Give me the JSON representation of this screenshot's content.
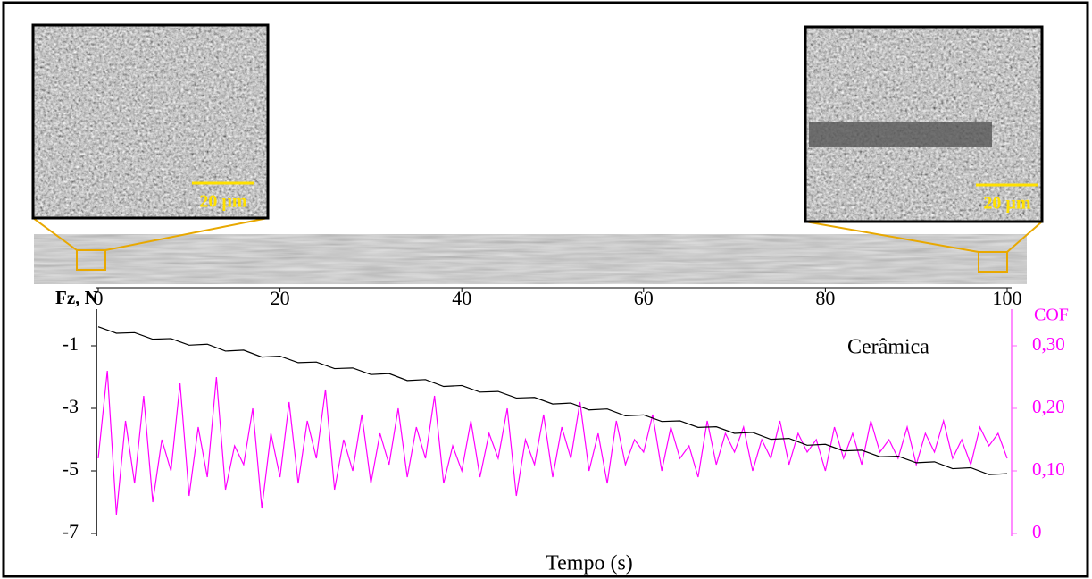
{
  "chart_data": {
    "type": "line",
    "annotation": "Cerâmica",
    "scale_bar_labels": [
      "20 µm",
      "20 µm"
    ],
    "xlabel": "Tempo (s)",
    "ylabel": "Fz, N",
    "y2label": "COF",
    "xlim": [
      0,
      100
    ],
    "xticks": [
      0,
      20,
      40,
      60,
      80,
      100
    ],
    "ylim": [
      -7,
      0
    ],
    "yticks": [
      -1,
      -3,
      -5,
      -7
    ],
    "y2lim": [
      0,
      0.35
    ],
    "y2ticks": [
      0,
      {
        "value": 0.1,
        "label": "0,10"
      },
      {
        "value": 0.2,
        "label": "0,20"
      },
      {
        "value": 0.3,
        "label": "0,30"
      }
    ],
    "series": [
      {
        "name": "Fz, N",
        "color": "#000000",
        "x": [
          0,
          2,
          4,
          6,
          8,
          10,
          12,
          14,
          16,
          18,
          20,
          22,
          24,
          26,
          28,
          30,
          32,
          34,
          36,
          38,
          40,
          42,
          44,
          46,
          48,
          50,
          52,
          54,
          56,
          58,
          60,
          62,
          64,
          66,
          68,
          70,
          72,
          74,
          76,
          78,
          80,
          82,
          84,
          86,
          88,
          90,
          92,
          94,
          96,
          98,
          100
        ],
        "values": [
          -0.39,
          -0.6,
          -0.58,
          -0.79,
          -0.77,
          -0.98,
          -0.95,
          -1.17,
          -1.14,
          -1.36,
          -1.33,
          -1.54,
          -1.52,
          -1.73,
          -1.71,
          -1.92,
          -1.89,
          -2.11,
          -2.08,
          -2.3,
          -2.27,
          -2.48,
          -2.46,
          -2.67,
          -2.65,
          -2.86,
          -2.83,
          -3.05,
          -3.02,
          -3.24,
          -3.21,
          -3.42,
          -3.4,
          -3.61,
          -3.59,
          -3.8,
          -3.77,
          -3.99,
          -3.96,
          -4.18,
          -4.15,
          -4.36,
          -4.34,
          -4.55,
          -4.53,
          -4.74,
          -4.71,
          -4.93,
          -4.9,
          -5.12,
          -5.09
        ]
      },
      {
        "name": "COF",
        "color": "#ff00ff",
        "axis": "y2",
        "x": [
          0,
          1,
          2,
          3,
          4,
          5,
          6,
          7,
          8,
          9,
          10,
          11,
          12,
          13,
          14,
          15,
          16,
          17,
          18,
          19,
          20,
          21,
          22,
          23,
          24,
          25,
          26,
          27,
          28,
          29,
          30,
          31,
          32,
          33,
          34,
          35,
          36,
          37,
          38,
          39,
          40,
          41,
          42,
          43,
          44,
          45,
          46,
          47,
          48,
          49,
          50,
          51,
          52,
          53,
          54,
          55,
          56,
          57,
          58,
          59,
          60,
          61,
          62,
          63,
          64,
          65,
          66,
          67,
          68,
          69,
          70,
          71,
          72,
          73,
          74,
          75,
          76,
          77,
          78,
          79,
          80,
          81,
          82,
          83,
          84,
          85,
          86,
          87,
          88,
          89,
          90,
          91,
          92,
          93,
          94,
          95,
          96,
          97,
          98,
          99,
          100
        ],
        "values": [
          0.12,
          0.26,
          0.03,
          0.18,
          0.08,
          0.22,
          0.05,
          0.15,
          0.1,
          0.24,
          0.06,
          0.17,
          0.09,
          0.25,
          0.07,
          0.14,
          0.11,
          0.2,
          0.04,
          0.16,
          0.09,
          0.21,
          0.08,
          0.18,
          0.12,
          0.23,
          0.07,
          0.15,
          0.1,
          0.19,
          0.08,
          0.16,
          0.11,
          0.2,
          0.09,
          0.17,
          0.12,
          0.22,
          0.08,
          0.14,
          0.1,
          0.18,
          0.09,
          0.16,
          0.12,
          0.2,
          0.06,
          0.15,
          0.11,
          0.19,
          0.09,
          0.17,
          0.12,
          0.21,
          0.1,
          0.16,
          0.08,
          0.18,
          0.11,
          0.15,
          0.13,
          0.19,
          0.1,
          0.17,
          0.12,
          0.14,
          0.09,
          0.18,
          0.11,
          0.16,
          0.13,
          0.17,
          0.1,
          0.15,
          0.12,
          0.18,
          0.11,
          0.16,
          0.13,
          0.15,
          0.1,
          0.17,
          0.12,
          0.16,
          0.11,
          0.18,
          0.13,
          0.15,
          0.12,
          0.17,
          0.11,
          0.16,
          0.13,
          0.18,
          0.12,
          0.15,
          0.11,
          0.17,
          0.14,
          0.16,
          0.12
        ]
      }
    ]
  }
}
